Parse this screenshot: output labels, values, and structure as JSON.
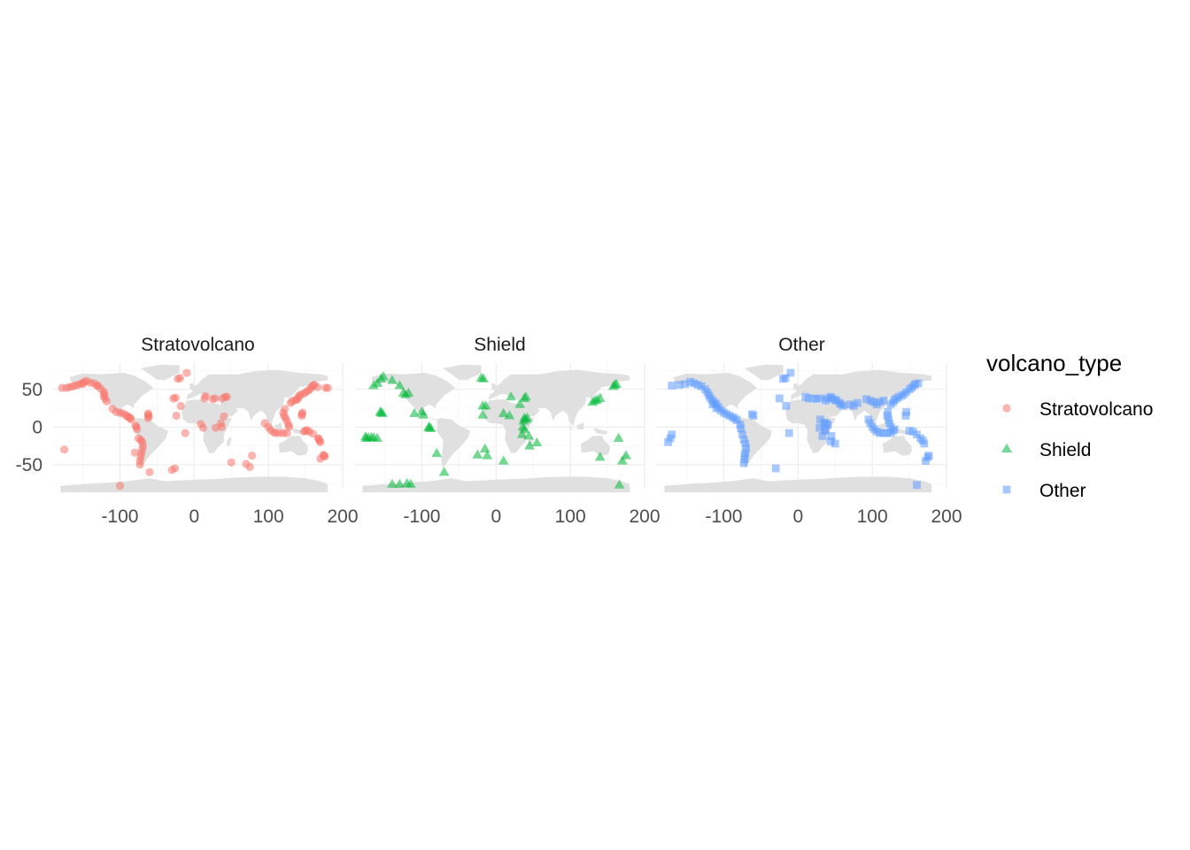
{
  "chart_data": {
    "type": "scatter",
    "facet_variable": "volcano_type",
    "panels": [
      "Stratovolcano",
      "Shield",
      "Other"
    ],
    "x_ticks": [
      -100,
      0,
      100,
      200
    ],
    "y_ticks": [
      -50,
      0,
      50
    ],
    "xlim": [
      -190,
      200
    ],
    "ylim": [
      -82,
      85
    ],
    "background_map": "world",
    "grid": true,
    "legend": {
      "title": "volcano_type",
      "position": "right",
      "entries": [
        {
          "label": "Stratovolcano",
          "color": "#F8766D",
          "shape": "circle"
        },
        {
          "label": "Shield",
          "color": "#00BA38",
          "shape": "triangle"
        },
        {
          "label": "Other",
          "color": "#619CFF",
          "shape": "square"
        }
      ]
    },
    "series": [
      {
        "name": "Stratovolcano",
        "color": "#F8766D",
        "shape": "circle",
        "points": [
          [
            -178,
            52
          ],
          [
            -172,
            52
          ],
          [
            -168,
            53
          ],
          [
            -164,
            54
          ],
          [
            -160,
            55
          ],
          [
            -156,
            56
          ],
          [
            -152,
            58
          ],
          [
            -148,
            60
          ],
          [
            -145,
            61
          ],
          [
            -135,
            58
          ],
          [
            -130,
            55
          ],
          [
            -122,
            47
          ],
          [
            -121,
            44
          ],
          [
            -122,
            41
          ],
          [
            -120,
            38
          ],
          [
            -105,
            20
          ],
          [
            -100,
            19
          ],
          [
            -96,
            18
          ],
          [
            -92,
            16
          ],
          [
            -90,
            14
          ],
          [
            -88,
            13
          ],
          [
            -86,
            12
          ],
          [
            -85,
            10
          ],
          [
            -79,
            2
          ],
          [
            -78,
            0
          ],
          [
            -77,
            -3
          ],
          [
            -75,
            -15
          ],
          [
            -72,
            -17
          ],
          [
            -70,
            -20
          ],
          [
            -69,
            -25
          ],
          [
            -70,
            -30
          ],
          [
            -71,
            -35
          ],
          [
            -72,
            -40
          ],
          [
            -73,
            -45
          ],
          [
            -73,
            -50
          ],
          [
            -62,
            16
          ],
          [
            -61,
            14
          ],
          [
            -62,
            12
          ],
          [
            -62,
            18
          ],
          [
            -175,
            -30
          ],
          [
            -100,
            -78
          ],
          [
            -80,
            -34
          ],
          [
            -60,
            -60
          ],
          [
            -28,
            38
          ],
          [
            -25,
            39
          ],
          [
            -18,
            28
          ],
          [
            -22,
            64
          ],
          [
            -19,
            65
          ],
          [
            -10,
            72
          ],
          [
            -24,
            15
          ],
          [
            -30,
            -57
          ],
          [
            -26,
            -55
          ],
          [
            12,
            -1
          ],
          [
            9,
            4
          ],
          [
            15,
            41
          ],
          [
            14,
            38
          ],
          [
            25,
            37
          ],
          [
            28,
            38
          ],
          [
            38,
            38
          ],
          [
            42,
            40
          ],
          [
            44,
            40
          ],
          [
            40,
            14
          ],
          [
            36,
            5
          ],
          [
            37,
            0
          ],
          [
            29,
            -1
          ],
          [
            -12,
            -8
          ],
          [
            50,
            -47
          ],
          [
            70,
            -49
          ],
          [
            78,
            -38
          ],
          [
            75,
            -53
          ],
          [
            95,
            5
          ],
          [
            100,
            0
          ],
          [
            103,
            -4
          ],
          [
            107,
            -7
          ],
          [
            110,
            -8
          ],
          [
            115,
            -8
          ],
          [
            120,
            -8
          ],
          [
            125,
            -8
          ],
          [
            128,
            0
          ],
          [
            127,
            3
          ],
          [
            125,
            8
          ],
          [
            123,
            12
          ],
          [
            121,
            15
          ],
          [
            120,
            19
          ],
          [
            122,
            24
          ],
          [
            130,
            32
          ],
          [
            132,
            34
          ],
          [
            136,
            36
          ],
          [
            138,
            36
          ],
          [
            140,
            38
          ],
          [
            141,
            41
          ],
          [
            143,
            43
          ],
          [
            147,
            44
          ],
          [
            150,
            46
          ],
          [
            153,
            48
          ],
          [
            156,
            50
          ],
          [
            158,
            53
          ],
          [
            160,
            55
          ],
          [
            162,
            56
          ],
          [
            166,
            53
          ],
          [
            145,
            15
          ],
          [
            145,
            17
          ],
          [
            146,
            19
          ],
          [
            150,
            -5
          ],
          [
            152,
            -4
          ],
          [
            148,
            -6
          ],
          [
            155,
            -6
          ],
          [
            160,
            -9
          ],
          [
            167,
            -15
          ],
          [
            168,
            -16
          ],
          [
            169,
            -19
          ],
          [
            170,
            -20
          ],
          [
            175,
            -38
          ],
          [
            176,
            -39
          ],
          [
            174,
            -37
          ],
          [
            170,
            -42
          ],
          [
            177,
            52
          ],
          [
            180,
            52
          ],
          [
            -150,
            57
          ],
          [
            -140,
            59
          ],
          [
            -131,
            55
          ],
          [
            -126,
            51
          ],
          [
            -118,
            34
          ],
          [
            -110,
            24
          ]
        ]
      },
      {
        "name": "Shield",
        "color": "#00BA38",
        "shape": "triangle",
        "points": [
          [
            -155,
            19
          ],
          [
            -156,
            20
          ],
          [
            -153,
            18
          ],
          [
            -175,
            -15
          ],
          [
            -172,
            -14
          ],
          [
            -168,
            -14
          ],
          [
            -165,
            55
          ],
          [
            -160,
            58
          ],
          [
            -152,
            67
          ],
          [
            -155,
            64
          ],
          [
            -140,
            62
          ],
          [
            -130,
            55
          ],
          [
            -122,
            43
          ],
          [
            -118,
            45
          ],
          [
            -125,
            45
          ],
          [
            -110,
            18
          ],
          [
            -100,
            20
          ],
          [
            -98,
            16
          ],
          [
            -90,
            0
          ],
          [
            -91,
            -1
          ],
          [
            -88,
            -2
          ],
          [
            -80,
            -35
          ],
          [
            -70,
            -60
          ],
          [
            -17,
            64
          ],
          [
            -20,
            65
          ],
          [
            -25,
            -37
          ],
          [
            -15,
            -29
          ],
          [
            -12,
            -38
          ],
          [
            -18,
            28
          ],
          [
            -14,
            28
          ],
          [
            -18,
            16
          ],
          [
            10,
            -45
          ],
          [
            40,
            10
          ],
          [
            38,
            12
          ],
          [
            42,
            12
          ],
          [
            37,
            8
          ],
          [
            36,
            0
          ],
          [
            38,
            -3
          ],
          [
            35,
            -10
          ],
          [
            44,
            -12
          ],
          [
            45,
            -25
          ],
          [
            55,
            -21
          ],
          [
            40,
            40
          ],
          [
            32,
            30
          ],
          [
            38,
            38
          ],
          [
            20,
            40
          ],
          [
            18,
            15
          ],
          [
            10,
            18
          ],
          [
            130,
            33
          ],
          [
            133,
            35
          ],
          [
            136,
            36
          ],
          [
            140,
            38
          ],
          [
            160,
            56
          ],
          [
            158,
            54
          ],
          [
            162,
            57
          ],
          [
            165,
            -15
          ],
          [
            170,
            -45
          ],
          [
            175,
            -38
          ],
          [
            140,
            -40
          ],
          [
            166,
            -77
          ],
          [
            -130,
            -76
          ],
          [
            -120,
            -75
          ],
          [
            -140,
            -76
          ],
          [
            -115,
            -76
          ],
          [
            -160,
            -15
          ],
          [
            -165,
            -14
          ],
          [
            -176,
            -13
          ]
        ]
      },
      {
        "name": "Other",
        "color": "#619CFF",
        "shape": "square",
        "points": [
          [
            -170,
            55
          ],
          [
            -160,
            56
          ],
          [
            -152,
            57
          ],
          [
            -145,
            60
          ],
          [
            -140,
            58
          ],
          [
            -135,
            56
          ],
          [
            -130,
            54
          ],
          [
            -125,
            50
          ],
          [
            -122,
            46
          ],
          [
            -120,
            42
          ],
          [
            -118,
            38
          ],
          [
            -115,
            35
          ],
          [
            -112,
            32
          ],
          [
            -110,
            30
          ],
          [
            -107,
            26
          ],
          [
            -104,
            22
          ],
          [
            -100,
            19
          ],
          [
            -96,
            17
          ],
          [
            -92,
            15
          ],
          [
            -88,
            13
          ],
          [
            -85,
            11
          ],
          [
            -82,
            9
          ],
          [
            -78,
            3
          ],
          [
            -77,
            -2
          ],
          [
            -75,
            -10
          ],
          [
            -73,
            -17
          ],
          [
            -71,
            -22
          ],
          [
            -70,
            -28
          ],
          [
            -71,
            -34
          ],
          [
            -72,
            -38
          ],
          [
            -72,
            -43
          ],
          [
            -73,
            -48
          ],
          [
            -110,
            25
          ],
          [
            -115,
            30
          ],
          [
            -60,
            15
          ],
          [
            -62,
            17
          ],
          [
            -170,
            -10
          ],
          [
            -172,
            -15
          ],
          [
            -175,
            -20
          ],
          [
            -30,
            -55
          ],
          [
            -20,
            64
          ],
          [
            -17,
            65
          ],
          [
            -25,
            38
          ],
          [
            -16,
            28
          ],
          [
            -12,
            -8
          ],
          [
            10,
            40
          ],
          [
            14,
            38
          ],
          [
            20,
            38
          ],
          [
            25,
            37
          ],
          [
            30,
            38
          ],
          [
            37,
            35
          ],
          [
            40,
            38
          ],
          [
            44,
            40
          ],
          [
            46,
            38
          ],
          [
            50,
            36
          ],
          [
            52,
            35
          ],
          [
            56,
            32
          ],
          [
            58,
            30
          ],
          [
            61,
            28
          ],
          [
            30,
            10
          ],
          [
            35,
            6
          ],
          [
            38,
            5
          ],
          [
            40,
            3
          ],
          [
            37,
            -3
          ],
          [
            36,
            -5
          ],
          [
            29,
            -1
          ],
          [
            33,
            -12
          ],
          [
            45,
            -12
          ],
          [
            44,
            -19
          ],
          [
            50,
            -22
          ],
          [
            92,
            37
          ],
          [
            98,
            35
          ],
          [
            102,
            33
          ],
          [
            106,
            30
          ],
          [
            110,
            33
          ],
          [
            115,
            35
          ],
          [
            80,
            32
          ],
          [
            75,
            28
          ],
          [
            70,
            30
          ],
          [
            95,
            10
          ],
          [
            97,
            5
          ],
          [
            100,
            0
          ],
          [
            103,
            -3
          ],
          [
            106,
            -6
          ],
          [
            110,
            -8
          ],
          [
            115,
            -8
          ],
          [
            120,
            -8
          ],
          [
            125,
            -8
          ],
          [
            128,
            -5
          ],
          [
            130,
            -3
          ],
          [
            125,
            0
          ],
          [
            123,
            5
          ],
          [
            122,
            10
          ],
          [
            120,
            15
          ],
          [
            121,
            20
          ],
          [
            125,
            30
          ],
          [
            128,
            33
          ],
          [
            130,
            36
          ],
          [
            133,
            38
          ],
          [
            136,
            40
          ],
          [
            140,
            42
          ],
          [
            143,
            44
          ],
          [
            146,
            47
          ],
          [
            150,
            50
          ],
          [
            153,
            52
          ],
          [
            156,
            55
          ],
          [
            158,
            57
          ],
          [
            162,
            58
          ],
          [
            145,
            15
          ],
          [
            146,
            20
          ],
          [
            150,
            -5
          ],
          [
            155,
            -6
          ],
          [
            160,
            -10
          ],
          [
            165,
            -15
          ],
          [
            168,
            -18
          ],
          [
            170,
            -22
          ],
          [
            176,
            -38
          ],
          [
            175,
            -40
          ],
          [
            172,
            -45
          ],
          [
            -10,
            72
          ],
          [
            160,
            -77
          ]
        ]
      }
    ]
  }
}
